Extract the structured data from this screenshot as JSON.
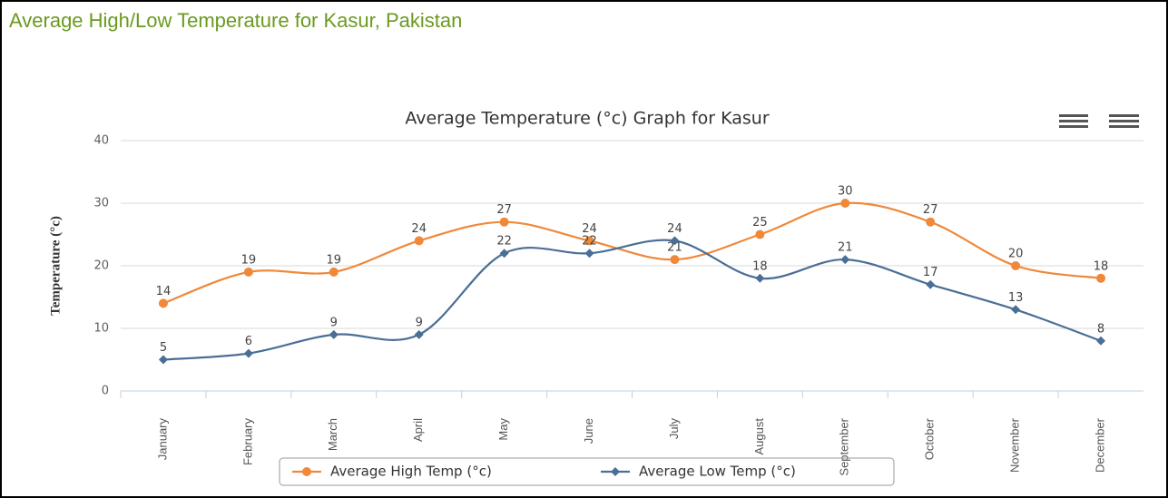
{
  "page_title": "Average High/Low Temperature for Kasur, Pakistan",
  "chart_data": {
    "type": "line",
    "title": "Average Temperature (°c) Graph for Kasur",
    "y_label": "Temperature (°c)",
    "categories": [
      "January",
      "February",
      "March",
      "April",
      "May",
      "June",
      "July",
      "August",
      "September",
      "October",
      "November",
      "December"
    ],
    "series": [
      {
        "name": "Average High Temp (°c)",
        "color": "#f0883a",
        "values": [
          14,
          19,
          19,
          24,
          27,
          24,
          21,
          25,
          30,
          27,
          20,
          18
        ]
      },
      {
        "name": "Average Low Temp (°c)",
        "color": "#4a6e96",
        "values": [
          5,
          6,
          9,
          9,
          22,
          22,
          24,
          18,
          21,
          17,
          13,
          8
        ]
      }
    ],
    "ylim": [
      0,
      40
    ],
    "yticks": [
      0,
      10,
      20,
      30,
      40
    ],
    "grid": true,
    "legend": "bottom"
  }
}
